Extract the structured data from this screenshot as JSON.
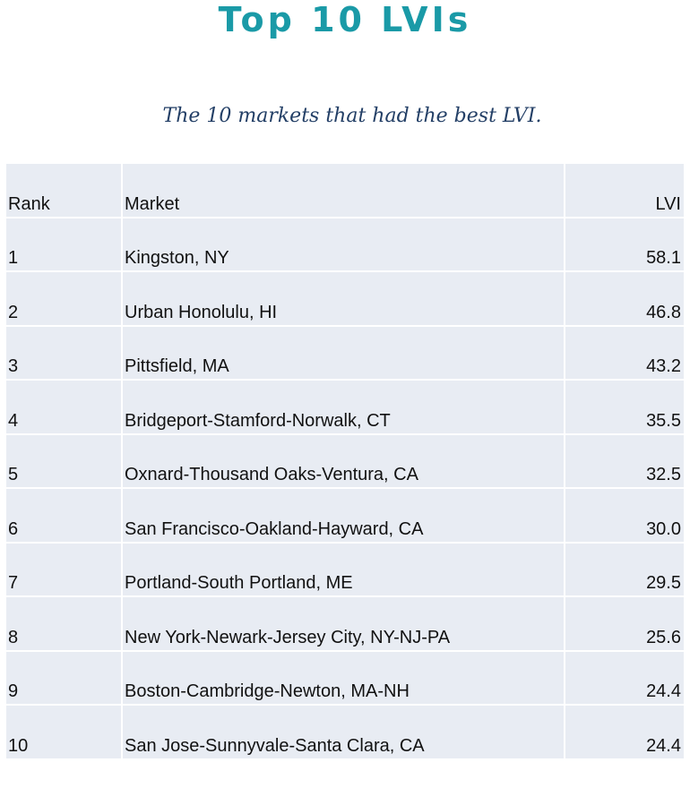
{
  "title": "Top 10 LVIs",
  "subtitle": "The 10 markets that had the best LVI.",
  "table": {
    "headers": [
      "Rank",
      "Market",
      "LVI"
    ],
    "rows": [
      [
        "1",
        "Kingston, NY",
        "58.1"
      ],
      [
        "2",
        "Urban Honolulu, HI",
        "46.8"
      ],
      [
        "3",
        "Pittsfield, MA",
        "43.2"
      ],
      [
        "4",
        "Bridgeport-Stamford-Norwalk, CT",
        "35.5"
      ],
      [
        "5",
        "Oxnard-Thousand Oaks-Ventura, CA",
        "32.5"
      ],
      [
        "6",
        "San Francisco-Oakland-Hayward, CA",
        "30.0"
      ],
      [
        "7",
        "Portland-South Portland, ME",
        "29.5"
      ],
      [
        "8",
        "New York-Newark-Jersey City, NY-NJ-PA",
        "25.6"
      ],
      [
        "9",
        "Boston-Cambridge-Newton, MA-NH",
        "24.4"
      ],
      [
        "10",
        "San Jose-Sunnyvale-Santa Clara, CA",
        "24.4"
      ]
    ]
  },
  "colors": {
    "title": "#1a9aa7",
    "subtitle": "#233f66",
    "cell_background": "#e8ecf3",
    "cell_border": "#ffffff"
  }
}
